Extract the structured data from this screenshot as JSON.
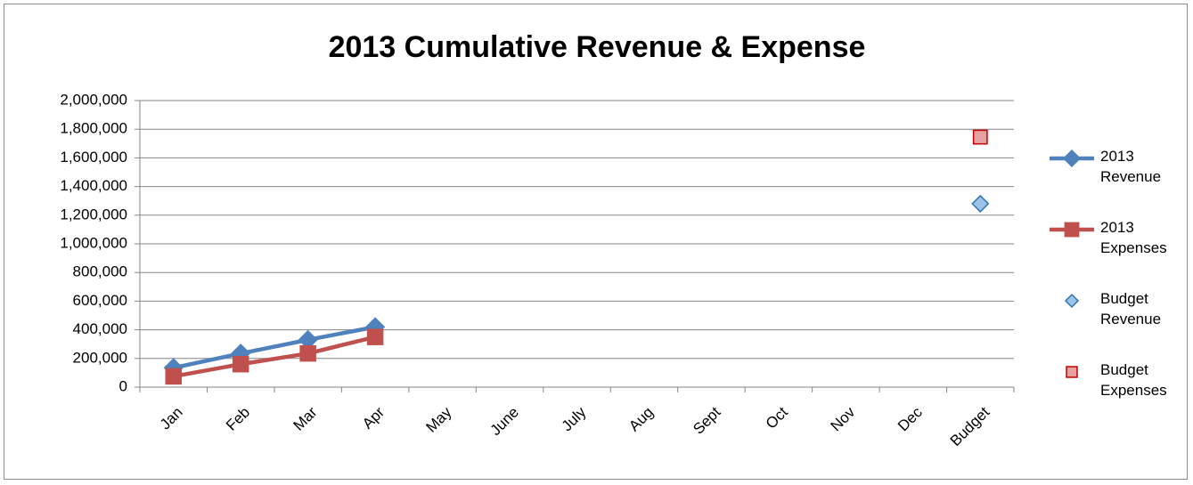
{
  "chart_data": {
    "type": "line",
    "title": "2013 Cumulative Revenue & Expense",
    "categories": [
      "Jan",
      "Feb",
      "Mar",
      "Apr",
      "May",
      "June",
      "July",
      "Aug",
      "Sept",
      "Oct",
      "Nov",
      "Dec",
      "Budget"
    ],
    "series": [
      {
        "name": "2013 Revenue",
        "color": "#4f81bd",
        "marker": "diamond",
        "marker_fill": "#4f81bd",
        "line": true,
        "values": [
          135000,
          235000,
          330000,
          420000,
          null,
          null,
          null,
          null,
          null,
          null,
          null,
          null,
          null
        ]
      },
      {
        "name": "2013 Expenses",
        "color": "#c0504d",
        "marker": "square",
        "marker_fill": "#c0504d",
        "line": true,
        "values": [
          75000,
          160000,
          235000,
          350000,
          null,
          null,
          null,
          null,
          null,
          null,
          null,
          null,
          null
        ]
      },
      {
        "name": "Budget Revenue",
        "color": "#2e75b6",
        "marker": "diamond",
        "marker_fill": "#9dc3e6",
        "line": false,
        "values": [
          null,
          null,
          null,
          null,
          null,
          null,
          null,
          null,
          null,
          null,
          null,
          null,
          1280000
        ]
      },
      {
        "name": "Budget Expenses",
        "color": "#c00000",
        "marker": "square",
        "marker_fill": "#e6a0a0",
        "line": false,
        "values": [
          null,
          null,
          null,
          null,
          null,
          null,
          null,
          null,
          null,
          null,
          null,
          null,
          1745000
        ]
      }
    ],
    "ylim": [
      0,
      2000000
    ],
    "yticks": [
      0,
      {
        "value": 200000,
        "label": "200,000"
      },
      {
        "value": 400000,
        "label": "400,000"
      },
      {
        "value": 600000,
        "label": "600,000"
      },
      {
        "value": 800000,
        "label": "800,000"
      },
      {
        "value": 1000000,
        "label": "1,000,000"
      },
      {
        "value": 1200000,
        "label": "1,200,000"
      },
      {
        "value": 1400000,
        "label": "1,400,000"
      },
      {
        "value": 1600000,
        "label": "1,600,000"
      },
      {
        "value": 1800000,
        "label": "1,800,000"
      },
      {
        "value": 2000000,
        "label": "2,000,000"
      }
    ],
    "grid": true,
    "legend": "right"
  }
}
